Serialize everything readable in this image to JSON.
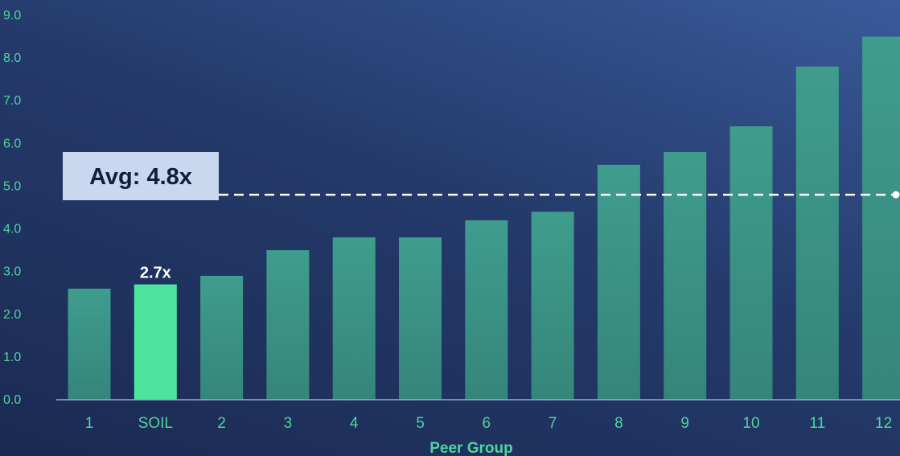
{
  "chart_data": {
    "type": "bar",
    "categories": [
      "1",
      "SOIL",
      "2",
      "3",
      "4",
      "5",
      "6",
      "7",
      "8",
      "9",
      "10",
      "11",
      "12"
    ],
    "values": [
      2.6,
      2.7,
      2.9,
      3.5,
      3.8,
      3.8,
      4.2,
      4.4,
      5.5,
      5.8,
      6.4,
      7.8,
      8.5
    ],
    "highlight_category": "SOIL",
    "highlight_label": "2.7x",
    "xlabel": "Peer Group",
    "ylabel": "",
    "ylim": [
      0,
      9
    ],
    "yticks": [
      "0.0",
      "1.0",
      "2.0",
      "3.0",
      "4.0",
      "5.0",
      "6.0",
      "7.0",
      "8.0",
      "9.0"
    ],
    "reference_line": {
      "value": 4.8,
      "label": "Avg: 4.8x"
    },
    "grid": false,
    "colors": {
      "bar": "#3a9a88",
      "highlight": "#4ee39e",
      "text": "#4ed5a0",
      "avg_box": "#c9d8ee",
      "avg_line": "#ffffff"
    }
  }
}
